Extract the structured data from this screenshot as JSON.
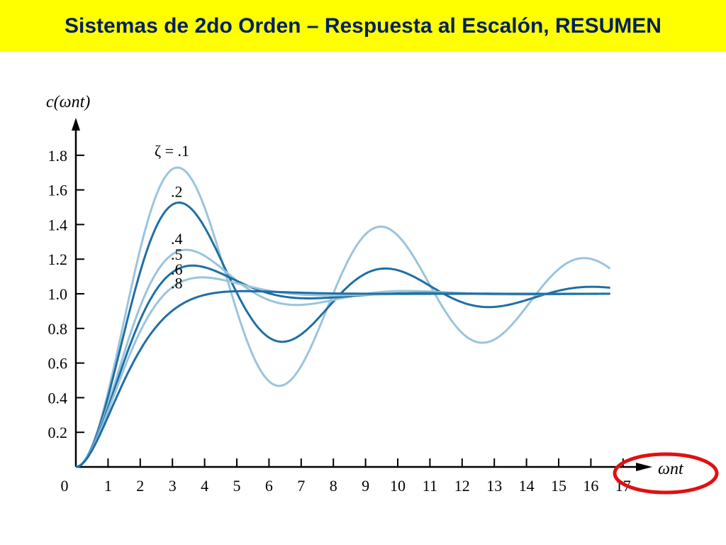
{
  "slide": {
    "title": "Sistemas de 2do Orden – Respuesta al Escalón, RESUMEN",
    "banner_color": "#ffff00",
    "title_color": "#002060",
    "highlight_color": "#e01010"
  },
  "chart_data": {
    "type": "line",
    "title": "",
    "xlabel": "ωnt",
    "ylabel": "c(ωnt)",
    "xlim": [
      0,
      17
    ],
    "ylim": [
      0,
      1.9
    ],
    "x_ticks": [
      "0",
      "1",
      "2",
      "3",
      "4",
      "5",
      "6",
      "7",
      "8",
      "9",
      "10",
      "11",
      "12",
      "13",
      "14",
      "15",
      "16",
      "17"
    ],
    "y_ticks": [
      "0.2",
      "0.4",
      "0.6",
      "0.8",
      "1.0",
      "1.2",
      "1.4",
      "1.6",
      "1.8"
    ],
    "grid": false,
    "zeta_prefix": "ζ  = ",
    "x_end": 16.6,
    "colors": {
      "light": "#9bc4dc",
      "dark": "#1f6fa3"
    },
    "series": [
      {
        "name": ".1",
        "zeta": 0.1,
        "color": "#9bc4dc"
      },
      {
        "name": ".2",
        "zeta": 0.2,
        "color": "#1f6fa3"
      },
      {
        "name": ".4",
        "zeta": 0.4,
        "color": "#9bc4dc"
      },
      {
        "name": ".5",
        "zeta": 0.5,
        "color": "#1f6fa3"
      },
      {
        "name": ".6",
        "zeta": 0.6,
        "color": "#9bc4dc"
      },
      {
        "name": ".8",
        "zeta": 0.8,
        "color": "#1f6fa3"
      }
    ]
  }
}
